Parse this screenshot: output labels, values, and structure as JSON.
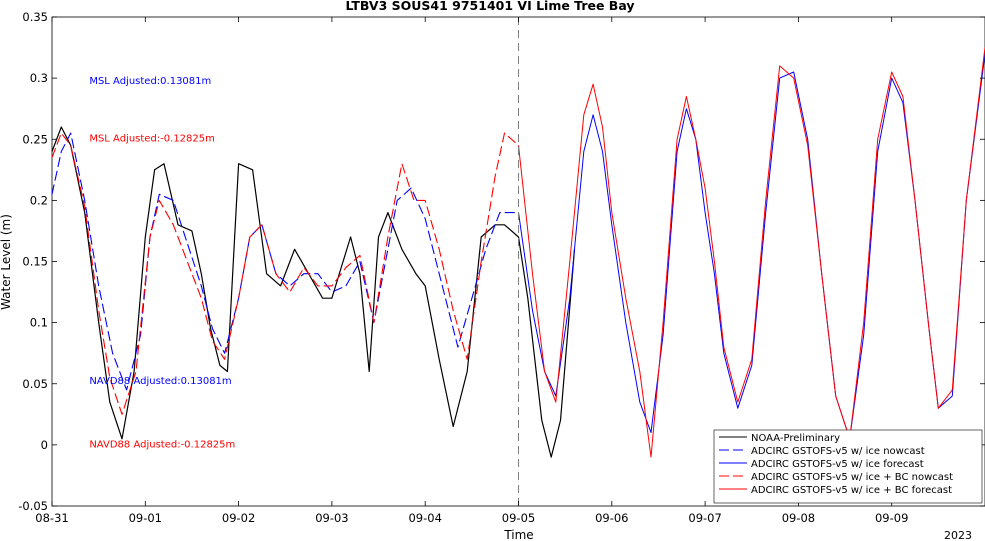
{
  "chart_data": {
    "type": "line",
    "title": "LTBV3 SOUS41 9751401 VI Lime Tree Bay",
    "xlabel": "Time",
    "ylabel": "Water Level (m)",
    "ylim": [
      -0.05,
      0.35
    ],
    "xlim": [
      0,
      10
    ],
    "xticks": [
      0,
      1,
      2,
      3,
      4,
      5,
      6,
      7,
      8,
      9
    ],
    "xticklabels": [
      "08-31",
      "09-01",
      "09-02",
      "09-03",
      "09-04",
      "09-05",
      "09-06",
      "09-07",
      "09-08",
      "09-09"
    ],
    "yticks": [
      -0.05,
      0,
      0.05,
      0.1,
      0.15,
      0.2,
      0.25,
      0.3,
      0.35
    ],
    "yticklabels": [
      "-0.05",
      "0",
      "0.05",
      "0.1",
      "0.15",
      "0.2",
      "0.25",
      "0.3",
      "0.35"
    ],
    "year_label": "2023",
    "nowcast_divider_x": 5,
    "legend_position": "bottom-right",
    "grid": false,
    "annotations": [
      {
        "text": "MSL Adjusted:0.13081m",
        "x": 0.4,
        "y": 0.295,
        "color": "#0000ff"
      },
      {
        "text": "MSL Adjusted:-0.12825m",
        "x": 0.4,
        "y": 0.248,
        "color": "#ff0000"
      },
      {
        "text": "NAVD88 Adjusted:0.13081m",
        "x": 0.4,
        "y": 0.05,
        "color": "#0000ff"
      },
      {
        "text": "NAVD88 Adjusted:-0.12825m",
        "x": 0.4,
        "y": -0.002,
        "color": "#ff0000"
      }
    ],
    "series": [
      {
        "name": "NOAA-Preliminary",
        "color": "#000000",
        "dash": "solid",
        "width": 1.2,
        "x": [
          0,
          0.1,
          0.2,
          0.35,
          0.5,
          0.62,
          0.75,
          0.88,
          1.0,
          1.1,
          1.2,
          1.35,
          1.5,
          1.6,
          1.7,
          1.8,
          1.88,
          2.0,
          2.15,
          2.3,
          2.45,
          2.6,
          2.75,
          2.9,
          3.0,
          3.1,
          3.2,
          3.3,
          3.4,
          3.5,
          3.6,
          3.75,
          3.9,
          4.0,
          4.15,
          4.3,
          4.45,
          4.6,
          4.75,
          4.85,
          5.0,
          5.1,
          5.25,
          5.35,
          5.45,
          5.6
        ],
        "y": [
          0.24,
          0.26,
          0.245,
          0.19,
          0.1,
          0.035,
          0.005,
          0.06,
          0.17,
          0.225,
          0.23,
          0.18,
          0.175,
          0.14,
          0.095,
          0.065,
          0.06,
          0.23,
          0.225,
          0.14,
          0.13,
          0.16,
          0.14,
          0.12,
          0.12,
          0.145,
          0.17,
          0.14,
          0.06,
          0.17,
          0.19,
          0.16,
          0.14,
          0.13,
          0.07,
          0.015,
          0.06,
          0.17,
          0.18,
          0.18,
          0.17,
          0.12,
          0.02,
          -0.01,
          0.02,
          0.16
        ]
      },
      {
        "name": "ADCIRC GSTOFS-v5 w/ ice nowcast",
        "color": "#0000ff",
        "dash": "long",
        "width": 1.1,
        "x": [
          0,
          0.1,
          0.2,
          0.35,
          0.5,
          0.65,
          0.8,
          0.95,
          1.05,
          1.15,
          1.3,
          1.45,
          1.6,
          1.72,
          1.85,
          2.0,
          2.12,
          2.25,
          2.4,
          2.55,
          2.7,
          2.85,
          3.0,
          3.15,
          3.3,
          3.45,
          3.55,
          3.7,
          3.85,
          4.0,
          4.15,
          4.35,
          4.5,
          4.65,
          4.8,
          5.0
        ],
        "y": [
          0.205,
          0.24,
          0.255,
          0.2,
          0.13,
          0.075,
          0.045,
          0.09,
          0.17,
          0.205,
          0.2,
          0.165,
          0.13,
          0.095,
          0.075,
          0.12,
          0.17,
          0.18,
          0.14,
          0.13,
          0.14,
          0.14,
          0.125,
          0.13,
          0.15,
          0.1,
          0.14,
          0.2,
          0.21,
          0.185,
          0.14,
          0.08,
          0.12,
          0.16,
          0.19,
          0.19
        ]
      },
      {
        "name": "ADCIRC GSTOFS-v5 w/ ice forecast",
        "color": "#0000ff",
        "dash": "solid",
        "width": 1.0,
        "x": [
          5.0,
          5.15,
          5.28,
          5.4,
          5.55,
          5.7,
          5.8,
          5.9,
          6.0,
          6.15,
          6.3,
          6.42,
          6.55,
          6.7,
          6.8,
          6.9,
          7.0,
          7.1,
          7.2,
          7.35,
          7.5,
          7.65,
          7.8,
          7.95,
          8.1,
          8.25,
          8.4,
          8.55,
          8.7,
          8.85,
          9.0,
          9.12,
          9.25,
          9.4,
          9.5,
          9.65,
          9.8,
          10.0
        ],
        "y": [
          0.19,
          0.11,
          0.06,
          0.04,
          0.12,
          0.24,
          0.27,
          0.24,
          0.18,
          0.1,
          0.035,
          0.01,
          0.09,
          0.24,
          0.275,
          0.25,
          0.19,
          0.14,
          0.075,
          0.03,
          0.065,
          0.19,
          0.3,
          0.305,
          0.25,
          0.14,
          0.04,
          0.005,
          0.09,
          0.24,
          0.3,
          0.28,
          0.2,
          0.095,
          0.03,
          0.04,
          0.2,
          0.32
        ]
      },
      {
        "name": "ADCIRC GSTOFS-v5 w/ ice + BC nowcast",
        "color": "#ff0000",
        "dash": "long",
        "width": 1.1,
        "x": [
          0,
          0.1,
          0.2,
          0.35,
          0.5,
          0.62,
          0.75,
          0.9,
          1.05,
          1.15,
          1.3,
          1.45,
          1.6,
          1.72,
          1.85,
          2.0,
          2.12,
          2.25,
          2.4,
          2.55,
          2.7,
          2.85,
          3.0,
          3.15,
          3.3,
          3.45,
          3.6,
          3.75,
          3.88,
          4.0,
          4.15,
          4.3,
          4.45,
          4.6,
          4.75,
          4.85,
          5.0
        ],
        "y": [
          0.235,
          0.255,
          0.245,
          0.195,
          0.11,
          0.055,
          0.025,
          0.06,
          0.17,
          0.2,
          0.18,
          0.15,
          0.12,
          0.085,
          0.07,
          0.12,
          0.17,
          0.18,
          0.14,
          0.125,
          0.145,
          0.13,
          0.13,
          0.145,
          0.155,
          0.1,
          0.17,
          0.23,
          0.2,
          0.2,
          0.16,
          0.11,
          0.07,
          0.15,
          0.22,
          0.255,
          0.245
        ]
      },
      {
        "name": "ADCIRC GSTOFS-v5 w/ ice + BC forecast",
        "color": "#ff0000",
        "dash": "solid",
        "width": 1.0,
        "x": [
          5.0,
          5.15,
          5.28,
          5.4,
          5.55,
          5.7,
          5.8,
          5.9,
          6.0,
          6.15,
          6.3,
          6.42,
          6.55,
          6.7,
          6.8,
          6.9,
          7.0,
          7.1,
          7.2,
          7.35,
          7.5,
          7.65,
          7.8,
          7.95,
          8.1,
          8.25,
          8.4,
          8.55,
          8.7,
          8.85,
          9.0,
          9.12,
          9.25,
          9.4,
          9.5,
          9.65,
          9.8,
          10.0
        ],
        "y": [
          0.245,
          0.14,
          0.06,
          0.035,
          0.15,
          0.27,
          0.295,
          0.26,
          0.19,
          0.12,
          0.06,
          -0.01,
          0.1,
          0.25,
          0.285,
          0.25,
          0.21,
          0.15,
          0.08,
          0.035,
          0.07,
          0.2,
          0.31,
          0.3,
          0.245,
          0.14,
          0.04,
          0.005,
          0.1,
          0.25,
          0.305,
          0.285,
          0.2,
          0.095,
          0.03,
          0.045,
          0.2,
          0.325
        ]
      }
    ]
  }
}
